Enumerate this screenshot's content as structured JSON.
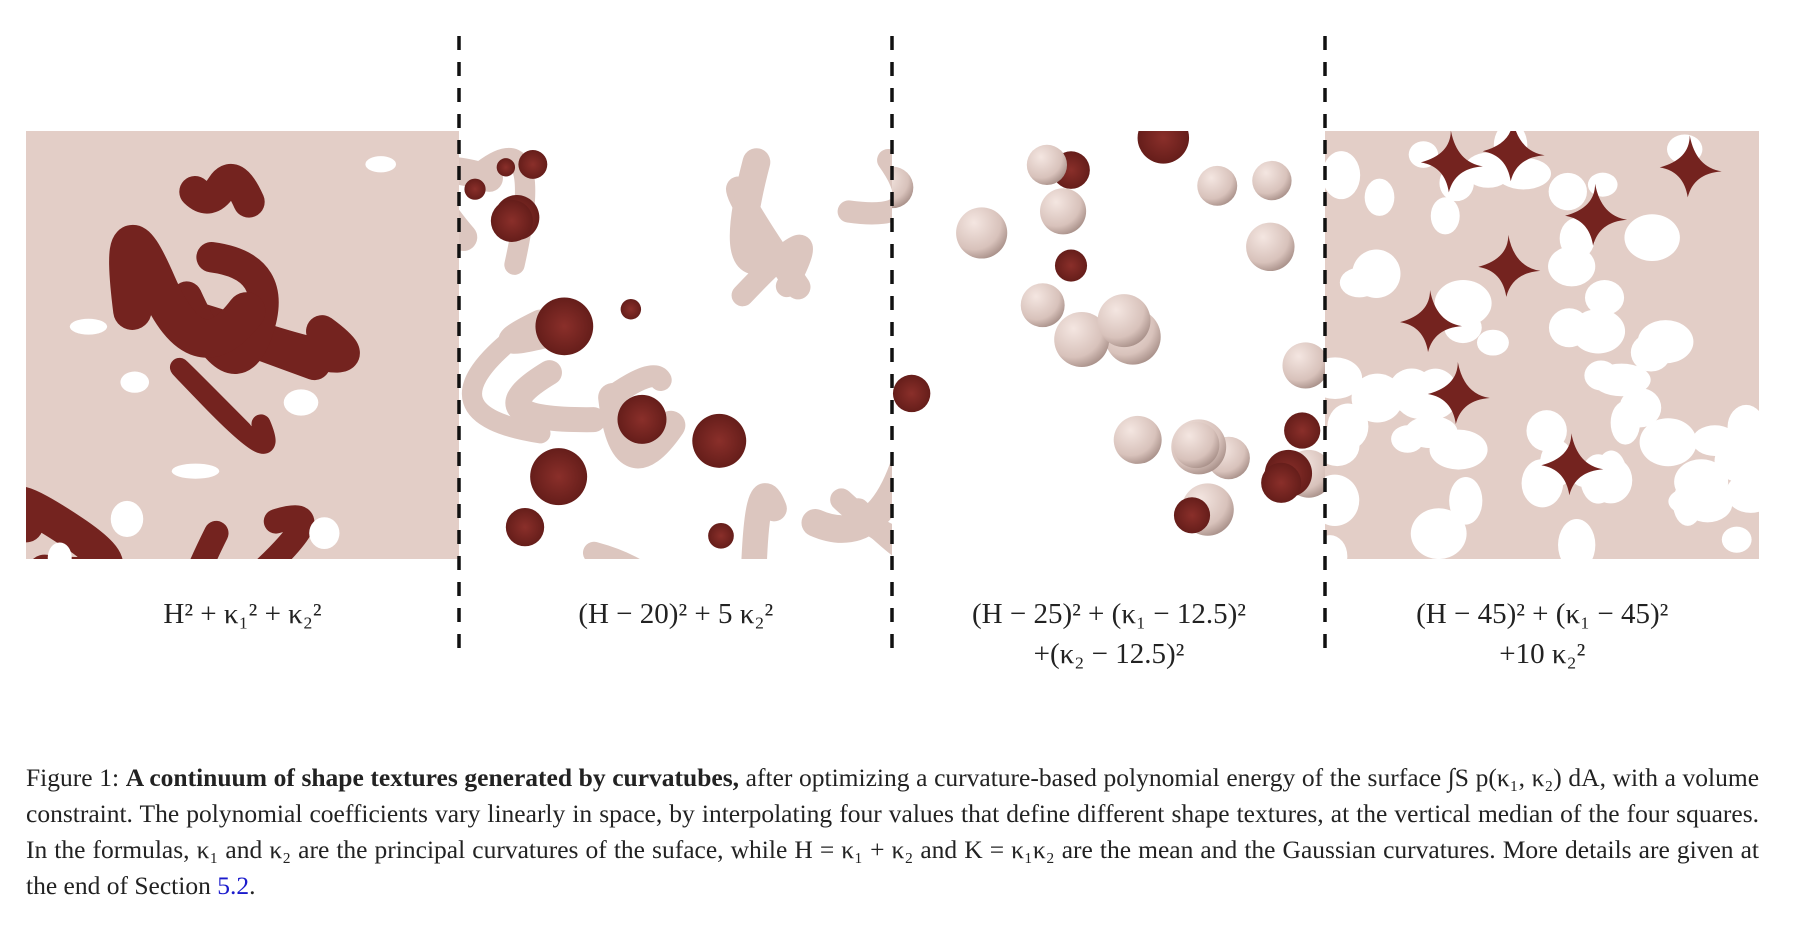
{
  "figure": {
    "formulas": [
      {
        "lines": [
          "H² + κ₁² + κ₂²"
        ]
      },
      {
        "lines": [
          "(H − 20)² + 5 κ₂²"
        ]
      },
      {
        "lines": [
          "(H − 25)² + (κ₁ − 12.5)²",
          "+(κ₂ − 12.5)²"
        ]
      },
      {
        "lines": [
          "(H − 45)² + (κ₁ − 45)²",
          "+10 κ₂²"
        ]
      }
    ],
    "caption": {
      "label": "Figure 1:",
      "bold": "A continuum of shape textures generated by curvatubes,",
      "body": "after optimizing a curvature-based polynomial energy of the surface ∫S p(κ₁, κ₂) dA, with a volume constraint. The polynomial coefficients vary linearly in space, by interpolating four values that define different shape textures, at the vertical median of the four squares. In the formulas, κ₁ and κ₂ are the principal curvatures of the suface, while H = κ₁ + κ₂ and K = κ₁κ₂ are the mean and the Gaussian curvatures. More details are given at the end of Section",
      "link": "5.2",
      "end": "."
    }
  }
}
